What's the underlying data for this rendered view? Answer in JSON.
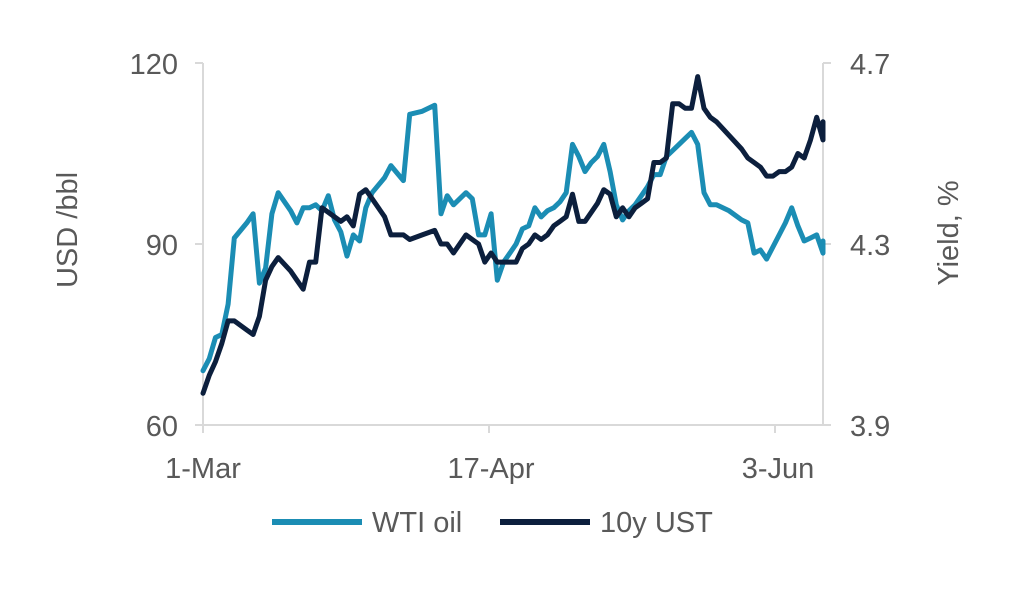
{
  "chart_data": {
    "type": "line",
    "x_ticks": [
      "1-Mar",
      "17-Apr",
      "3-Jun"
    ],
    "x_range": [
      "2022-03-01",
      "2022-06-08"
    ],
    "y_left": {
      "label": "USD /bbl",
      "min": 60,
      "max": 120,
      "ticks": [
        60,
        90,
        120
      ]
    },
    "y_right": {
      "label": "Yield, %",
      "min": 3.9,
      "max": 4.7,
      "ticks": [
        "3.9",
        "4.3",
        "4.7"
      ]
    },
    "legend_position": "bottom",
    "series": [
      {
        "name": "WTI oil",
        "axis": "left",
        "color": "#1b8db4",
        "points": [
          [
            "2022-03-01",
            69
          ],
          [
            "2022-03-02",
            71
          ],
          [
            "2022-03-03",
            74.5
          ],
          [
            "2022-03-04",
            75
          ],
          [
            "2022-03-05",
            80
          ],
          [
            "2022-03-06",
            91
          ],
          [
            "2022-03-08",
            93.5
          ],
          [
            "2022-03-09",
            95
          ],
          [
            "2022-03-10",
            83.5
          ],
          [
            "2022-03-11",
            86
          ],
          [
            "2022-03-12",
            95
          ],
          [
            "2022-03-13",
            98.5
          ],
          [
            "2022-03-15",
            95.5
          ],
          [
            "2022-03-16",
            93.5
          ],
          [
            "2022-03-17",
            96
          ],
          [
            "2022-03-18",
            96
          ],
          [
            "2022-03-19",
            96.5
          ],
          [
            "2022-03-20",
            95.5
          ],
          [
            "2022-03-21",
            98
          ],
          [
            "2022-03-22",
            94
          ],
          [
            "2022-03-23",
            92
          ],
          [
            "2022-03-24",
            88
          ],
          [
            "2022-03-25",
            91.5
          ],
          [
            "2022-03-26",
            90.5
          ],
          [
            "2022-03-27",
            96
          ],
          [
            "2022-03-28",
            98.5
          ],
          [
            "2022-03-30",
            101
          ],
          [
            "2022-03-31",
            103
          ],
          [
            "2022-04-02",
            100.5
          ],
          [
            "2022-04-03",
            111.5
          ],
          [
            "2022-04-05",
            112
          ],
          [
            "2022-04-07",
            113
          ],
          [
            "2022-04-08",
            95
          ],
          [
            "2022-04-09",
            98
          ],
          [
            "2022-04-10",
            96.5
          ],
          [
            "2022-04-12",
            98.5
          ],
          [
            "2022-04-13",
            97.5
          ],
          [
            "2022-04-14",
            91.5
          ],
          [
            "2022-04-15",
            91.5
          ],
          [
            "2022-04-16",
            95
          ],
          [
            "2022-04-17",
            84
          ],
          [
            "2022-04-18",
            87
          ],
          [
            "2022-04-19",
            88.5
          ],
          [
            "2022-04-20",
            90
          ],
          [
            "2022-04-21",
            92.5
          ],
          [
            "2022-04-22",
            93
          ],
          [
            "2022-04-23",
            96
          ],
          [
            "2022-04-24",
            94.5
          ],
          [
            "2022-04-25",
            95.5
          ],
          [
            "2022-04-26",
            96
          ],
          [
            "2022-04-27",
            97
          ],
          [
            "2022-04-28",
            98.5
          ],
          [
            "2022-04-29",
            106.5
          ],
          [
            "2022-04-30",
            104.5
          ],
          [
            "2022-05-01",
            102
          ],
          [
            "2022-05-02",
            103.5
          ],
          [
            "2022-05-03",
            104.5
          ],
          [
            "2022-05-04",
            106.5
          ],
          [
            "2022-05-05",
            102
          ],
          [
            "2022-05-06",
            96.5
          ],
          [
            "2022-05-07",
            94
          ],
          [
            "2022-05-08",
            95.5
          ],
          [
            "2022-05-09",
            96.5
          ],
          [
            "2022-05-10",
            98
          ],
          [
            "2022-05-11",
            99.5
          ],
          [
            "2022-05-12",
            101.5
          ],
          [
            "2022-05-13",
            101.5
          ],
          [
            "2022-05-14",
            104.5
          ],
          [
            "2022-05-15",
            105.5
          ],
          [
            "2022-05-16",
            106.5
          ],
          [
            "2022-05-17",
            107.5
          ],
          [
            "2022-05-18",
            108.5
          ],
          [
            "2022-05-19",
            106.5
          ],
          [
            "2022-05-20",
            98.5
          ],
          [
            "2022-05-21",
            96.5
          ],
          [
            "2022-05-22",
            96.5
          ],
          [
            "2022-05-24",
            95.5
          ],
          [
            "2022-05-26",
            94
          ],
          [
            "2022-05-27",
            93.5
          ],
          [
            "2022-05-28",
            88.5
          ],
          [
            "2022-05-29",
            89
          ],
          [
            "2022-05-30",
            87.5
          ],
          [
            "2022-05-31",
            89.5
          ],
          [
            "2022-06-01",
            91.5
          ],
          [
            "2022-06-02",
            93.5
          ],
          [
            "2022-06-03",
            96
          ],
          [
            "2022-06-04",
            93
          ],
          [
            "2022-06-05",
            90.5
          ],
          [
            "2022-06-06",
            91
          ],
          [
            "2022-06-07",
            91.5
          ],
          [
            "2022-06-08",
            88.5
          ],
          [
            "2022-06-09",
            90.5
          ]
        ]
      },
      {
        "name": "10y UST",
        "axis": "right",
        "color": "#0c1f3d",
        "points": [
          [
            "2022-03-01",
            3.97
          ],
          [
            "2022-03-02",
            4.01
          ],
          [
            "2022-03-03",
            4.04
          ],
          [
            "2022-03-04",
            4.08
          ],
          [
            "2022-03-05",
            4.13
          ],
          [
            "2022-03-06",
            4.13
          ],
          [
            "2022-03-08",
            4.11
          ],
          [
            "2022-03-09",
            4.1
          ],
          [
            "2022-03-10",
            4.14
          ],
          [
            "2022-03-11",
            4.22
          ],
          [
            "2022-03-12",
            4.25
          ],
          [
            "2022-03-13",
            4.27
          ],
          [
            "2022-03-15",
            4.24
          ],
          [
            "2022-03-16",
            4.22
          ],
          [
            "2022-03-17",
            4.2
          ],
          [
            "2022-03-18",
            4.26
          ],
          [
            "2022-03-19",
            4.26
          ],
          [
            "2022-03-20",
            4.38
          ],
          [
            "2022-03-21",
            4.37
          ],
          [
            "2022-03-22",
            4.36
          ],
          [
            "2022-03-23",
            4.35
          ],
          [
            "2022-03-24",
            4.36
          ],
          [
            "2022-03-25",
            4.34
          ],
          [
            "2022-03-26",
            4.41
          ],
          [
            "2022-03-27",
            4.42
          ],
          [
            "2022-03-28",
            4.4
          ],
          [
            "2022-03-30",
            4.36
          ],
          [
            "2022-03-31",
            4.32
          ],
          [
            "2022-04-02",
            4.32
          ],
          [
            "2022-04-03",
            4.31
          ],
          [
            "2022-04-05",
            4.32
          ],
          [
            "2022-04-07",
            4.33
          ],
          [
            "2022-04-08",
            4.3
          ],
          [
            "2022-04-09",
            4.3
          ],
          [
            "2022-04-10",
            4.28
          ],
          [
            "2022-04-12",
            4.32
          ],
          [
            "2022-04-13",
            4.31
          ],
          [
            "2022-04-14",
            4.3
          ],
          [
            "2022-04-15",
            4.26
          ],
          [
            "2022-04-16",
            4.28
          ],
          [
            "2022-04-17",
            4.26
          ],
          [
            "2022-04-18",
            4.26
          ],
          [
            "2022-04-19",
            4.26
          ],
          [
            "2022-04-20",
            4.26
          ],
          [
            "2022-04-21",
            4.29
          ],
          [
            "2022-04-22",
            4.3
          ],
          [
            "2022-04-23",
            4.32
          ],
          [
            "2022-04-24",
            4.31
          ],
          [
            "2022-04-25",
            4.32
          ],
          [
            "2022-04-26",
            4.34
          ],
          [
            "2022-04-27",
            4.35
          ],
          [
            "2022-04-28",
            4.36
          ],
          [
            "2022-04-29",
            4.41
          ],
          [
            "2022-04-30",
            4.35
          ],
          [
            "2022-05-01",
            4.35
          ],
          [
            "2022-05-02",
            4.37
          ],
          [
            "2022-05-03",
            4.39
          ],
          [
            "2022-05-04",
            4.42
          ],
          [
            "2022-05-05",
            4.41
          ],
          [
            "2022-05-06",
            4.36
          ],
          [
            "2022-05-07",
            4.38
          ],
          [
            "2022-05-08",
            4.36
          ],
          [
            "2022-05-09",
            4.38
          ],
          [
            "2022-05-10",
            4.39
          ],
          [
            "2022-05-11",
            4.4
          ],
          [
            "2022-05-12",
            4.48
          ],
          [
            "2022-05-13",
            4.48
          ],
          [
            "2022-05-14",
            4.49
          ],
          [
            "2022-05-15",
            4.61
          ],
          [
            "2022-05-16",
            4.61
          ],
          [
            "2022-05-17",
            4.6
          ],
          [
            "2022-05-18",
            4.6
          ],
          [
            "2022-05-19",
            4.67
          ],
          [
            "2022-05-20",
            4.6
          ],
          [
            "2022-05-21",
            4.58
          ],
          [
            "2022-05-22",
            4.57
          ],
          [
            "2022-05-24",
            4.54
          ],
          [
            "2022-05-26",
            4.51
          ],
          [
            "2022-05-27",
            4.49
          ],
          [
            "2022-05-28",
            4.48
          ],
          [
            "2022-05-29",
            4.47
          ],
          [
            "2022-05-30",
            4.45
          ],
          [
            "2022-05-31",
            4.45
          ],
          [
            "2022-06-01",
            4.46
          ],
          [
            "2022-06-02",
            4.46
          ],
          [
            "2022-06-03",
            4.47
          ],
          [
            "2022-06-04",
            4.5
          ],
          [
            "2022-06-05",
            4.49
          ],
          [
            "2022-06-06",
            4.53
          ],
          [
            "2022-06-07",
            4.58
          ],
          [
            "2022-06-08",
            4.53
          ],
          [
            "2022-06-09",
            4.57
          ]
        ]
      }
    ]
  }
}
